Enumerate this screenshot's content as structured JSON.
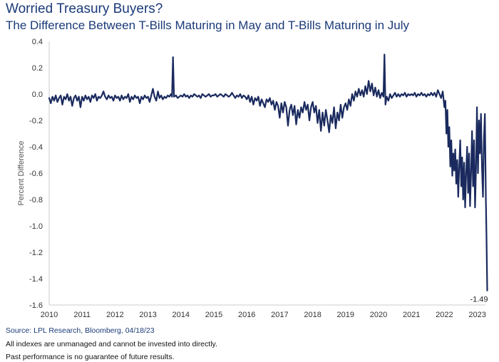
{
  "chart_data": {
    "type": "line",
    "title": "Worried Treasury Buyers?",
    "subtitle": "The Difference Between T-Bills Maturing in May and T-Bills Maturing in July",
    "xlabel": "",
    "ylabel": "Percent Difference",
    "x_ticks": [
      "2010",
      "2011",
      "2012",
      "2013",
      "2014",
      "2015",
      "2016",
      "2017",
      "2018",
      "2019",
      "2020",
      "2021",
      "2022",
      "2023"
    ],
    "xlim": [
      2010,
      2023.3
    ],
    "y_ticks": [
      "0.4",
      "0.2",
      "0.0",
      "-0.2",
      "-0.4",
      "-0.6",
      "-0.8",
      "-1.0",
      "-1.2",
      "-1.4",
      "-1.6"
    ],
    "y_tick_values": [
      0.4,
      0.2,
      0.0,
      -0.2,
      -0.4,
      -0.6,
      -0.8,
      -1.0,
      -1.2,
      -1.4,
      -1.6
    ],
    "ylim": [
      -1.6,
      0.4
    ],
    "grid": false,
    "line_color": "#1a2a5e",
    "annotation": {
      "text": "-1.49",
      "x": 2023.3,
      "y": -1.49
    },
    "series": [
      {
        "name": "Percent Difference",
        "points": [
          [
            2010.0,
            -0.03
          ],
          [
            2010.05,
            -0.07
          ],
          [
            2010.1,
            -0.02
          ],
          [
            2010.15,
            -0.05
          ],
          [
            2010.2,
            -0.01
          ],
          [
            2010.25,
            -0.06
          ],
          [
            2010.3,
            -0.03
          ],
          [
            2010.35,
            -0.01
          ],
          [
            2010.4,
            -0.08
          ],
          [
            2010.45,
            -0.02
          ],
          [
            2010.5,
            -0.04
          ],
          [
            2010.55,
            0.0
          ],
          [
            2010.6,
            -0.05
          ],
          [
            2010.65,
            -0.02
          ],
          [
            2010.7,
            -0.09
          ],
          [
            2010.75,
            -0.03
          ],
          [
            2010.8,
            -0.01
          ],
          [
            2010.85,
            -0.05
          ],
          [
            2010.9,
            -0.02
          ],
          [
            2010.95,
            -0.1
          ],
          [
            2011.0,
            -0.02
          ],
          [
            2011.05,
            -0.05
          ],
          [
            2011.1,
            -0.01
          ],
          [
            2011.15,
            -0.04
          ],
          [
            2011.2,
            -0.02
          ],
          [
            2011.25,
            -0.06
          ],
          [
            2011.3,
            -0.01
          ],
          [
            2011.35,
            -0.03
          ],
          [
            2011.4,
            0.0
          ],
          [
            2011.45,
            -0.05
          ],
          [
            2011.5,
            -0.02
          ],
          [
            2011.55,
            -0.03
          ],
          [
            2011.6,
            -0.01
          ],
          [
            2011.65,
            0.02
          ],
          [
            2011.7,
            -0.02
          ],
          [
            2011.75,
            -0.04
          ],
          [
            2011.8,
            -0.01
          ],
          [
            2011.85,
            -0.03
          ],
          [
            2011.9,
            -0.02
          ],
          [
            2011.95,
            -0.05
          ],
          [
            2012.0,
            -0.01
          ],
          [
            2012.05,
            -0.03
          ],
          [
            2012.1,
            -0.02
          ],
          [
            2012.15,
            -0.05
          ],
          [
            2012.2,
            -0.01
          ],
          [
            2012.25,
            -0.04
          ],
          [
            2012.3,
            -0.02
          ],
          [
            2012.35,
            -0.03
          ],
          [
            2012.4,
            0.0
          ],
          [
            2012.45,
            -0.06
          ],
          [
            2012.5,
            -0.02
          ],
          [
            2012.55,
            -0.04
          ],
          [
            2012.6,
            -0.01
          ],
          [
            2012.65,
            -0.03
          ],
          [
            2012.7,
            -0.02
          ],
          [
            2012.75,
            -0.07
          ],
          [
            2012.8,
            -0.02
          ],
          [
            2012.85,
            -0.04
          ],
          [
            2012.9,
            -0.01
          ],
          [
            2012.95,
            -0.03
          ],
          [
            2013.0,
            -0.02
          ],
          [
            2013.05,
            -0.06
          ],
          [
            2013.1,
            -0.01
          ],
          [
            2013.15,
            0.04
          ],
          [
            2013.2,
            -0.02
          ],
          [
            2013.25,
            -0.05
          ],
          [
            2013.3,
            0.02
          ],
          [
            2013.35,
            -0.03
          ],
          [
            2013.4,
            -0.01
          ],
          [
            2013.45,
            -0.04
          ],
          [
            2013.5,
            -0.02
          ],
          [
            2013.55,
            -0.03
          ],
          [
            2013.6,
            -0.01
          ],
          [
            2013.65,
            -0.02
          ],
          [
            2013.7,
            0.0
          ],
          [
            2013.73,
            -0.02
          ],
          [
            2013.76,
            0.28
          ],
          [
            2013.79,
            -0.02
          ],
          [
            2013.85,
            -0.01
          ],
          [
            2013.9,
            -0.03
          ],
          [
            2013.95,
            -0.02
          ],
          [
            2014.0,
            -0.01
          ],
          [
            2014.05,
            -0.02
          ],
          [
            2014.1,
            0.0
          ],
          [
            2014.15,
            -0.02
          ],
          [
            2014.2,
            -0.01
          ],
          [
            2014.25,
            -0.03
          ],
          [
            2014.3,
            -0.01
          ],
          [
            2014.35,
            -0.02
          ],
          [
            2014.4,
            0.0
          ],
          [
            2014.45,
            -0.01
          ],
          [
            2014.5,
            -0.02
          ],
          [
            2014.55,
            -0.01
          ],
          [
            2014.6,
            -0.03
          ],
          [
            2014.65,
            0.0
          ],
          [
            2014.7,
            -0.01
          ],
          [
            2014.75,
            -0.02
          ],
          [
            2014.8,
            -0.01
          ],
          [
            2014.85,
            0.0
          ],
          [
            2014.9,
            -0.02
          ],
          [
            2014.95,
            -0.01
          ],
          [
            2015.0,
            -0.01
          ],
          [
            2015.05,
            0.0
          ],
          [
            2015.1,
            -0.02
          ],
          [
            2015.15,
            -0.01
          ],
          [
            2015.2,
            0.0
          ],
          [
            2015.25,
            -0.01
          ],
          [
            2015.3,
            -0.02
          ],
          [
            2015.35,
            0.0
          ],
          [
            2015.4,
            -0.01
          ],
          [
            2015.45,
            -0.02
          ],
          [
            2015.5,
            -0.01
          ],
          [
            2015.55,
            0.01
          ],
          [
            2015.6,
            -0.01
          ],
          [
            2015.65,
            -0.03
          ],
          [
            2015.7,
            -0.01
          ],
          [
            2015.75,
            -0.02
          ],
          [
            2015.8,
            0.0
          ],
          [
            2015.85,
            -0.03
          ],
          [
            2015.9,
            -0.01
          ],
          [
            2015.95,
            -0.02
          ],
          [
            2016.0,
            -0.04
          ],
          [
            2016.05,
            -0.01
          ],
          [
            2016.1,
            -0.06
          ],
          [
            2016.15,
            -0.02
          ],
          [
            2016.2,
            -0.08
          ],
          [
            2016.25,
            -0.03
          ],
          [
            2016.3,
            -0.05
          ],
          [
            2016.35,
            -0.02
          ],
          [
            2016.4,
            -0.09
          ],
          [
            2016.45,
            -0.04
          ],
          [
            2016.5,
            -0.07
          ],
          [
            2016.55,
            -0.1
          ],
          [
            2016.6,
            -0.04
          ],
          [
            2016.65,
            -0.06
          ],
          [
            2016.7,
            -0.03
          ],
          [
            2016.75,
            -0.08
          ],
          [
            2016.8,
            -0.05
          ],
          [
            2016.85,
            -0.12
          ],
          [
            2016.9,
            -0.06
          ],
          [
            2016.95,
            -0.09
          ],
          [
            2017.0,
            -0.18
          ],
          [
            2017.05,
            -0.07
          ],
          [
            2017.1,
            -0.14
          ],
          [
            2017.15,
            -0.06
          ],
          [
            2017.2,
            -0.1
          ],
          [
            2017.25,
            -0.24
          ],
          [
            2017.3,
            -0.12
          ],
          [
            2017.35,
            -0.08
          ],
          [
            2017.4,
            -0.16
          ],
          [
            2017.45,
            -0.09
          ],
          [
            2017.5,
            -0.23
          ],
          [
            2017.55,
            -0.12
          ],
          [
            2017.6,
            -0.18
          ],
          [
            2017.65,
            -0.1
          ],
          [
            2017.7,
            -0.14
          ],
          [
            2017.75,
            -0.06
          ],
          [
            2017.8,
            -0.12
          ],
          [
            2017.85,
            -0.08
          ],
          [
            2017.9,
            -0.2
          ],
          [
            2017.95,
            -0.1
          ],
          [
            2018.0,
            -0.06
          ],
          [
            2018.05,
            -0.14
          ],
          [
            2018.1,
            -0.09
          ],
          [
            2018.15,
            -0.22
          ],
          [
            2018.2,
            -0.12
          ],
          [
            2018.25,
            -0.28
          ],
          [
            2018.3,
            -0.14
          ],
          [
            2018.35,
            -0.24
          ],
          [
            2018.4,
            -0.12
          ],
          [
            2018.45,
            -0.2
          ],
          [
            2018.5,
            -0.29
          ],
          [
            2018.55,
            -0.16
          ],
          [
            2018.6,
            -0.22
          ],
          [
            2018.65,
            -0.1
          ],
          [
            2018.7,
            -0.26
          ],
          [
            2018.75,
            -0.14
          ],
          [
            2018.8,
            -0.2
          ],
          [
            2018.85,
            -0.08
          ],
          [
            2018.9,
            -0.18
          ],
          [
            2018.95,
            -0.1
          ],
          [
            2019.0,
            -0.07
          ],
          [
            2019.05,
            -0.12
          ],
          [
            2019.1,
            -0.04
          ],
          [
            2019.15,
            -0.09
          ],
          [
            2019.2,
            0.0
          ],
          [
            2019.25,
            -0.05
          ],
          [
            2019.3,
            0.02
          ],
          [
            2019.35,
            -0.02
          ],
          [
            2019.4,
            0.04
          ],
          [
            2019.45,
            -0.01
          ],
          [
            2019.5,
            0.03
          ],
          [
            2019.55,
            -0.02
          ],
          [
            2019.6,
            0.06
          ],
          [
            2019.65,
            0.0
          ],
          [
            2019.7,
            0.1
          ],
          [
            2019.75,
            0.02
          ],
          [
            2019.8,
            0.08
          ],
          [
            2019.85,
            -0.01
          ],
          [
            2019.9,
            0.05
          ],
          [
            2019.95,
            -0.02
          ],
          [
            2020.0,
            0.03
          ],
          [
            2020.05,
            -0.03
          ],
          [
            2020.1,
            0.01
          ],
          [
            2020.15,
            -0.02
          ],
          [
            2020.18,
            0.3
          ],
          [
            2020.21,
            -0.08
          ],
          [
            2020.25,
            -0.02
          ],
          [
            2020.3,
            -0.05
          ],
          [
            2020.35,
            0.0
          ],
          [
            2020.4,
            -0.03
          ],
          [
            2020.45,
            -0.01
          ],
          [
            2020.5,
            0.01
          ],
          [
            2020.55,
            -0.02
          ],
          [
            2020.6,
            0.0
          ],
          [
            2020.65,
            -0.02
          ],
          [
            2020.7,
            0.0
          ],
          [
            2020.75,
            -0.01
          ],
          [
            2020.8,
            0.01
          ],
          [
            2020.85,
            -0.02
          ],
          [
            2020.9,
            0.0
          ],
          [
            2020.95,
            -0.01
          ],
          [
            2021.0,
            0.0
          ],
          [
            2021.05,
            -0.01
          ],
          [
            2021.1,
            0.01
          ],
          [
            2021.15,
            -0.02
          ],
          [
            2021.2,
            0.0
          ],
          [
            2021.25,
            -0.01
          ],
          [
            2021.3,
            0.01
          ],
          [
            2021.35,
            -0.01
          ],
          [
            2021.4,
            0.0
          ],
          [
            2021.45,
            -0.02
          ],
          [
            2021.5,
            0.0
          ],
          [
            2021.55,
            -0.01
          ],
          [
            2021.6,
            0.01
          ],
          [
            2021.65,
            -0.01
          ],
          [
            2021.7,
            0.01
          ],
          [
            2021.75,
            -0.02
          ],
          [
            2021.8,
            0.03
          ],
          [
            2021.85,
            0.0
          ],
          [
            2021.9,
            -0.03
          ],
          [
            2021.95,
            0.02
          ],
          [
            2022.0,
            -0.1
          ],
          [
            2022.03,
            -0.05
          ],
          [
            2022.06,
            -0.3
          ],
          [
            2022.09,
            -0.12
          ],
          [
            2022.12,
            -0.4
          ],
          [
            2022.15,
            -0.25
          ],
          [
            2022.18,
            -0.55
          ],
          [
            2022.21,
            -0.35
          ],
          [
            2022.24,
            -0.62
          ],
          [
            2022.27,
            -0.45
          ],
          [
            2022.3,
            -0.58
          ],
          [
            2022.33,
            -0.42
          ],
          [
            2022.36,
            -0.68
          ],
          [
            2022.39,
            -0.5
          ],
          [
            2022.42,
            -0.78
          ],
          [
            2022.45,
            -0.55
          ],
          [
            2022.48,
            -0.35
          ],
          [
            2022.51,
            -0.7
          ],
          [
            2022.54,
            -0.48
          ],
          [
            2022.57,
            -0.8
          ],
          [
            2022.6,
            -0.52
          ],
          [
            2022.63,
            -0.86
          ],
          [
            2022.66,
            -0.6
          ],
          [
            2022.69,
            -0.4
          ],
          [
            2022.72,
            -0.75
          ],
          [
            2022.75,
            -0.45
          ],
          [
            2022.78,
            -0.85
          ],
          [
            2022.81,
            -0.6
          ],
          [
            2022.84,
            -0.28
          ],
          [
            2022.87,
            -0.7
          ],
          [
            2022.9,
            -0.35
          ],
          [
            2022.93,
            -0.86
          ],
          [
            2022.96,
            -0.55
          ],
          [
            2022.99,
            -0.1
          ],
          [
            2023.02,
            -0.6
          ],
          [
            2023.05,
            -0.2
          ],
          [
            2023.08,
            -0.45
          ],
          [
            2023.11,
            -0.15
          ],
          [
            2023.14,
            -0.55
          ],
          [
            2023.17,
            -0.78
          ],
          [
            2023.2,
            -0.35
          ],
          [
            2023.23,
            -0.15
          ],
          [
            2023.26,
            -0.8
          ],
          [
            2023.28,
            -1.1
          ],
          [
            2023.3,
            -1.49
          ]
        ]
      }
    ]
  },
  "footer": {
    "source": "Source: LPL Research, Bloomberg, 04/18/23",
    "note1": "All indexes are unmanaged and cannot be invested into directly.",
    "note2": "Past performance is no guarantee of future results."
  }
}
